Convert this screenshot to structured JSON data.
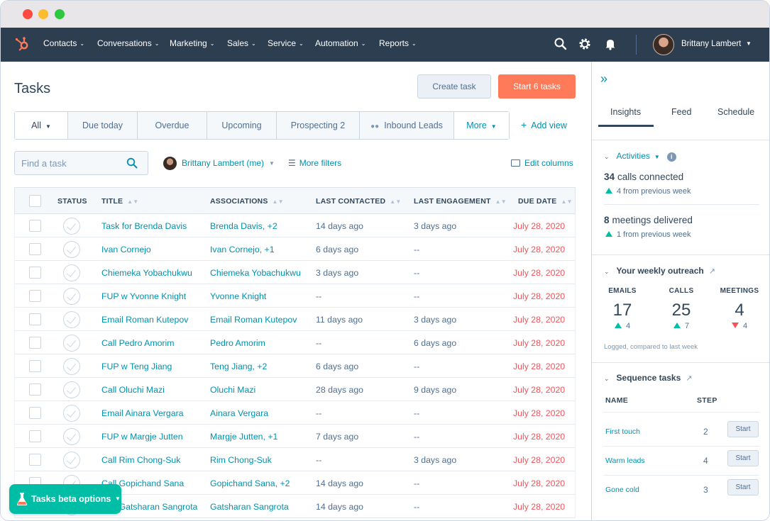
{
  "nav": {
    "items": [
      {
        "label": "Contacts"
      },
      {
        "label": "Conversations"
      },
      {
        "label": "Marketing"
      },
      {
        "label": "Sales"
      },
      {
        "label": "Service"
      },
      {
        "label": "Automation"
      },
      {
        "label": "Reports"
      }
    ],
    "user_name": "Brittany Lambert"
  },
  "page": {
    "title": "Tasks",
    "create_task_label": "Create task",
    "start_tasks_label": "Start 6 tasks"
  },
  "tabs": [
    {
      "label": "All"
    },
    {
      "label": "Due today"
    },
    {
      "label": "Overdue"
    },
    {
      "label": "Upcoming"
    },
    {
      "label": "Prospecting 2"
    },
    {
      "label": "Inbound Leads"
    },
    {
      "label": "More"
    }
  ],
  "add_view_label": "Add view",
  "toolbar": {
    "search_placeholder": "Find a task",
    "owner_label": "Brittany Lambert (me)",
    "more_filters_label": "More filters",
    "edit_columns_label": "Edit columns"
  },
  "table": {
    "headers": {
      "status": "STATUS",
      "title": "TITLE",
      "associations": "ASSOCIATIONS",
      "last_contacted": "LAST CONTACTED",
      "last_engagement": "LAST ENGAGEMENT",
      "due_date": "DUE DATE"
    },
    "rows": [
      {
        "title": "Task for Brenda Davis",
        "associations": "Brenda Davis, +2",
        "last_contacted": "14 days ago",
        "last_engagement": "3 days ago",
        "due_date": "July 28, 2020"
      },
      {
        "title": "Ivan Cornejo",
        "associations": "Ivan Cornejo, +1",
        "last_contacted": "6 days ago",
        "last_engagement": "--",
        "due_date": "July 28, 2020"
      },
      {
        "title": "Chiemeka Yobachukwu",
        "associations": "Chiemeka Yobachukwu",
        "last_contacted": "3 days ago",
        "last_engagement": "--",
        "due_date": "July 28, 2020"
      },
      {
        "title": "FUP w Yvonne Knight",
        "associations": "Yvonne Knight",
        "last_contacted": "--",
        "last_engagement": "--",
        "due_date": "July 28, 2020"
      },
      {
        "title": "Email Roman Kutepov",
        "associations": "Email Roman Kutepov",
        "last_contacted": "11 days ago",
        "last_engagement": "3 days ago",
        "due_date": "July 28, 2020"
      },
      {
        "title": "Call Pedro Amorim",
        "associations": "Pedro Amorim",
        "last_contacted": "--",
        "last_engagement": "6 days ago",
        "due_date": "July 28, 2020"
      },
      {
        "title": "FUP w Teng Jiang",
        "associations": "Teng Jiang, +2",
        "last_contacted": "6 days ago",
        "last_engagement": "--",
        "due_date": "July 28, 2020"
      },
      {
        "title": "Call Oluchi Mazi",
        "associations": "Oluchi Mazi",
        "last_contacted": "28 days ago",
        "last_engagement": "9 days ago",
        "due_date": "July 28, 2020"
      },
      {
        "title": "Email Ainara Vergara",
        "associations": "Ainara Vergara",
        "last_contacted": "--",
        "last_engagement": "--",
        "due_date": "July 28, 2020"
      },
      {
        "title": "FUP w Margje Jutten",
        "associations": "Margje Jutten, +1",
        "last_contacted": "7 days ago",
        "last_engagement": "--",
        "due_date": "July 28, 2020"
      },
      {
        "title": "Call Rim Chong-Suk",
        "associations": "Rim Chong-Suk",
        "last_contacted": "--",
        "last_engagement": "3 days ago",
        "due_date": "July 28, 2020"
      },
      {
        "title": "Call Gopichand Sana",
        "associations": "Gopichand Sana, +2",
        "last_contacted": "14 days ago",
        "last_engagement": "--",
        "due_date": "July 28, 2020"
      },
      {
        "title": "Call Gatsharan Sangrota",
        "associations": "Gatsharan Sangrota",
        "last_contacted": "14 days ago",
        "last_engagement": "--",
        "due_date": "July 28, 2020"
      }
    ]
  },
  "beta_label": "Tasks beta options",
  "sidebar": {
    "tabs": [
      {
        "label": "Insights"
      },
      {
        "label": "Feed"
      },
      {
        "label": "Schedule"
      }
    ],
    "activities": {
      "title": "Activities",
      "calls_count": "34",
      "calls_label": "calls connected",
      "calls_delta": "4 from previous week",
      "meetings_count": "8",
      "meetings_label": "meetings delivered",
      "meetings_delta": "1 from previous week"
    },
    "outreach": {
      "title": "Your weekly outreach",
      "emails": {
        "label": "EMAILS",
        "value": "17",
        "delta": "4",
        "direction": "up"
      },
      "calls": {
        "label": "CALLS",
        "value": "25",
        "delta": "7",
        "direction": "up"
      },
      "meetings": {
        "label": "MEETINGS",
        "value": "4",
        "delta": "4",
        "direction": "down"
      },
      "note": "Logged, compared to last week"
    },
    "sequence": {
      "title": "Sequence tasks",
      "name_header": "NAME",
      "step_header": "STEP",
      "rows": [
        {
          "name": "First touch",
          "step": "2",
          "button": "Start"
        },
        {
          "name": "Warm leads",
          "step": "4",
          "button": "Start"
        },
        {
          "name": "Gone cold",
          "step": "3",
          "button": "Start"
        }
      ]
    }
  },
  "colors": {
    "nav_bg": "#2d3e50",
    "primary": "#ff7a59",
    "link": "#0091ae",
    "due": "#f2545b",
    "positive": "#00bda5",
    "negative": "#f2545b"
  }
}
